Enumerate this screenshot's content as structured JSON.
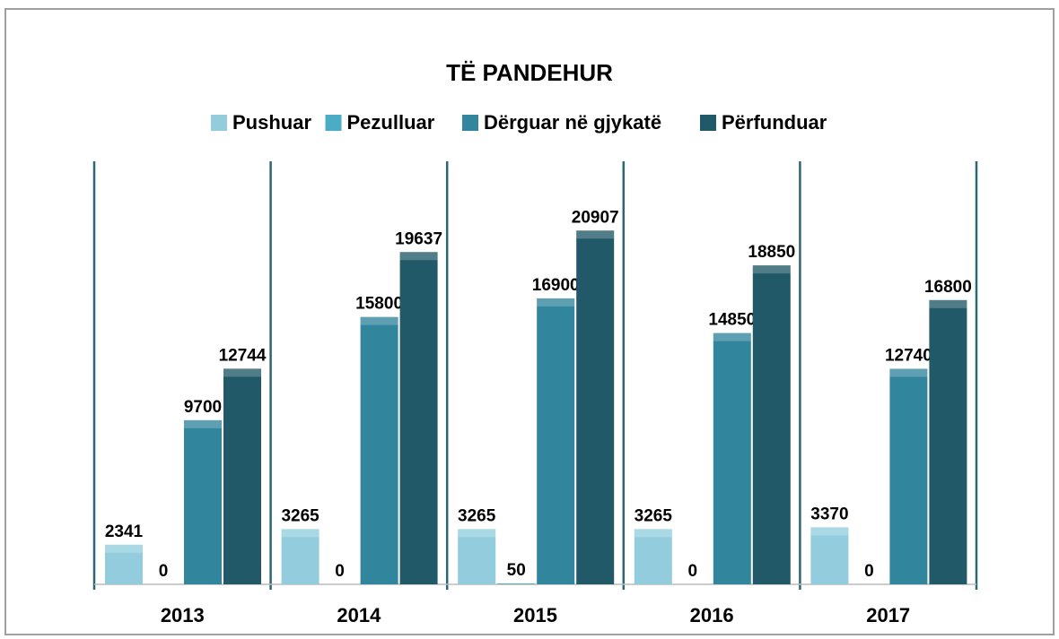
{
  "chart_data": {
    "type": "bar",
    "title": "TË PANDEHUR",
    "categories": [
      "2013",
      "2014",
      "2015",
      "2016",
      "2017"
    ],
    "series": [
      {
        "name": "Pushuar",
        "color": "#93cddd",
        "values": [
          2341,
          3265,
          3265,
          3265,
          3370
        ]
      },
      {
        "name": "Pezulluar",
        "color": "#4bacc6",
        "values": [
          0,
          0,
          50,
          0,
          0
        ]
      },
      {
        "name": "Dërguar në gjykatë",
        "color": "#31859c",
        "values": [
          9700,
          15800,
          16900,
          14850,
          12740
        ]
      },
      {
        "name": "Përfunduar",
        "color": "#215968",
        "values": [
          12744,
          19637,
          20907,
          18850,
          16800
        ]
      }
    ],
    "ylim": [
      0,
      25000
    ],
    "grid": true,
    "legend": "top"
  }
}
